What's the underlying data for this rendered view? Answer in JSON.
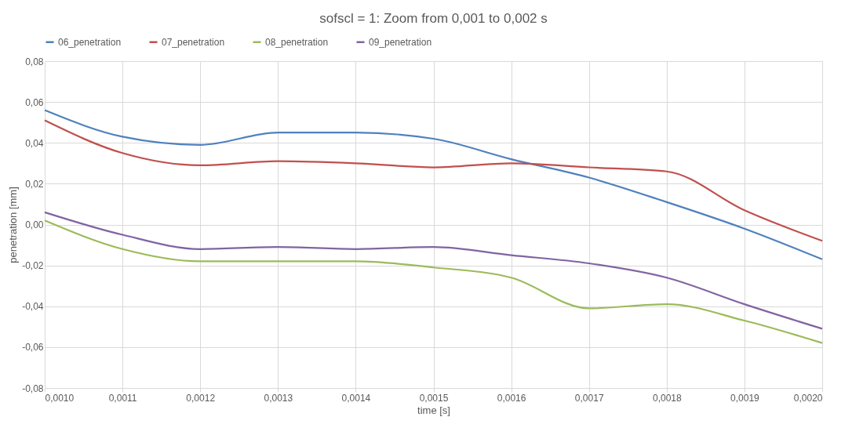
{
  "chart_data": {
    "type": "line",
    "title": "sofscl = 1: Zoom from 0,001 to 0,002 s",
    "xlabel": "time [s]",
    "ylabel": "penetration  [mm]",
    "x": [
      0.001,
      0.0011,
      0.0012,
      0.0013,
      0.0014,
      0.0015,
      0.0016,
      0.0017,
      0.0018,
      0.0019,
      0.002
    ],
    "series": [
      {
        "name": "06_penetration",
        "color": "#4f81bd",
        "values": [
          0.056,
          0.043,
          0.039,
          0.045,
          0.045,
          0.042,
          0.032,
          0.023,
          0.011,
          -0.002,
          -0.017
        ]
      },
      {
        "name": "07_penetration",
        "color": "#c0504d",
        "values": [
          0.051,
          0.035,
          0.029,
          0.031,
          0.03,
          0.028,
          0.03,
          0.028,
          0.026,
          0.007,
          -0.008
        ]
      },
      {
        "name": "08_penetration",
        "color": "#9bbb59",
        "values": [
          0.002,
          -0.012,
          -0.018,
          -0.018,
          -0.018,
          -0.021,
          -0.026,
          -0.041,
          -0.039,
          -0.047,
          -0.058
        ]
      },
      {
        "name": "09_penetration",
        "color": "#8064a2",
        "values": [
          0.006,
          -0.005,
          -0.012,
          -0.011,
          -0.012,
          -0.011,
          -0.015,
          -0.019,
          -0.026,
          -0.039,
          -0.051
        ]
      }
    ],
    "xlim": [
      0.001,
      0.002
    ],
    "xticks": [
      {
        "value": 0.001,
        "label": "0,0010"
      },
      {
        "value": 0.0011,
        "label": "0,0011"
      },
      {
        "value": 0.0012,
        "label": "0,0012"
      },
      {
        "value": 0.0013,
        "label": "0,0013"
      },
      {
        "value": 0.0014,
        "label": "0,0014"
      },
      {
        "value": 0.0015,
        "label": "0,0015"
      },
      {
        "value": 0.0016,
        "label": "0,0016"
      },
      {
        "value": 0.0017,
        "label": "0,0017"
      },
      {
        "value": 0.0018,
        "label": "0,0018"
      },
      {
        "value": 0.0019,
        "label": "0,0019"
      },
      {
        "value": 0.002,
        "label": "0,0020"
      }
    ],
    "ylim": [
      -0.08,
      0.08
    ],
    "yticks": [
      {
        "value": -0.08,
        "label": "-0,08"
      },
      {
        "value": -0.06,
        "label": "-0,06"
      },
      {
        "value": -0.04,
        "label": "-0,04"
      },
      {
        "value": -0.02,
        "label": "-0,02"
      },
      {
        "value": 0,
        "label": "0,00"
      },
      {
        "value": 0.02,
        "label": "0,02"
      },
      {
        "value": 0.04,
        "label": "0,04"
      },
      {
        "value": 0.06,
        "label": "0,06"
      },
      {
        "value": 0.08,
        "label": "0,08"
      }
    ],
    "grid": true,
    "legend": "top",
    "marker": "none",
    "line_style": "solid"
  }
}
